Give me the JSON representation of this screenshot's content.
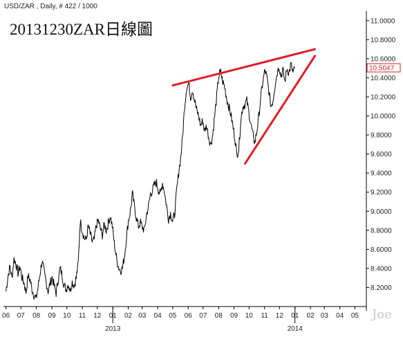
{
  "header": {
    "text": "USD/ZAR , Daily, # 422 / 1000"
  },
  "title": "20131230ZAR日線圖",
  "watermark": "Joe",
  "colors": {
    "price": "#000000",
    "trendline": "#e01c24",
    "lastval": "#d42020",
    "axis": "#000000"
  },
  "chart_data": {
    "type": "line",
    "series": [
      {
        "values": [
          8.16,
          8.32,
          8.42,
          8.3,
          8.5,
          8.45,
          8.35,
          8.42,
          8.3,
          8.25,
          8.15,
          8.32,
          8.28,
          8.18,
          8.12,
          8.08,
          8.2,
          8.35,
          8.48,
          8.36,
          8.26,
          8.16,
          8.24,
          8.31,
          8.22,
          8.14,
          8.28,
          8.4,
          8.33,
          8.22,
          8.18,
          8.24,
          8.17,
          8.26,
          8.22,
          8.3,
          8.45,
          8.9,
          8.8,
          8.72,
          8.7,
          8.84,
          8.76,
          8.68,
          8.7,
          8.85,
          8.9,
          8.82,
          8.75,
          8.86,
          8.8,
          8.88,
          8.95,
          8.84,
          8.66,
          8.52,
          8.42,
          8.38,
          8.4,
          8.52,
          8.72,
          8.9,
          9.0,
          9.18,
          9.05,
          8.93,
          8.84,
          8.88,
          8.83,
          8.8,
          8.96,
          9.05,
          9.18,
          9.22,
          9.28,
          9.3,
          9.22,
          9.18,
          9.3,
          9.2,
          9.06,
          8.92,
          8.98,
          8.9,
          8.96,
          9.2,
          9.4,
          9.55,
          9.78,
          10.1,
          10.3,
          10.34,
          10.2,
          10.28,
          10.16,
          10.06,
          10.0,
          9.9,
          9.95,
          9.84,
          9.9,
          9.78,
          9.7,
          9.8,
          10.0,
          10.2,
          10.42,
          10.46,
          10.36,
          10.3,
          10.18,
          10.1,
          10.02,
          9.9,
          9.78,
          9.6,
          9.65,
          9.95,
          10.1,
          10.12,
          10.16,
          10.04,
          9.92,
          9.8,
          9.72,
          9.84,
          10.0,
          10.2,
          10.36,
          10.48,
          10.4,
          10.26,
          10.1,
          10.16,
          10.32,
          10.44,
          10.53,
          10.42,
          10.48,
          10.36,
          10.5,
          10.45,
          10.54,
          10.45,
          10.5
        ]
      }
    ],
    "x_start_date": "2012-06-01",
    "x_end_date": "2014-01-01",
    "xticks": [
      {
        "label": "06",
        "value": "2012-06-01"
      },
      {
        "label": "07",
        "value": "2012-07-01"
      },
      {
        "label": "08",
        "value": "2012-08-01"
      },
      {
        "label": "09",
        "value": "2012-09-01"
      },
      {
        "label": "10",
        "value": "2012-10-01"
      },
      {
        "label": "11",
        "value": "2012-11-01"
      },
      {
        "label": "12",
        "value": "2012-12-01"
      },
      {
        "label": "01",
        "value": "2013-01-01"
      },
      {
        "label": "02",
        "value": "2013-02-01"
      },
      {
        "label": "03",
        "value": "2013-03-01"
      },
      {
        "label": "04",
        "value": "2013-04-01"
      },
      {
        "label": "05",
        "value": "2013-05-01"
      },
      {
        "label": "06",
        "value": "2013-06-01"
      },
      {
        "label": "07",
        "value": "2013-07-01"
      },
      {
        "label": "08",
        "value": "2013-08-01"
      },
      {
        "label": "09",
        "value": "2013-09-01"
      },
      {
        "label": "10",
        "value": "2013-10-01"
      },
      {
        "label": "11",
        "value": "2013-11-01"
      },
      {
        "label": "12",
        "value": "2013-12-01"
      },
      {
        "label": "01",
        "value": "2014-01-01"
      },
      {
        "label": "02",
        "value": "2014-02-01"
      },
      {
        "label": "03",
        "value": "2014-03-01"
      },
      {
        "label": "04",
        "value": "2014-04-01"
      },
      {
        "label": "05",
        "value": "2014-05-01"
      }
    ],
    "year_labels": [
      {
        "label": "2013",
        "value": "2013-01-01"
      },
      {
        "label": "2014",
        "value": "2014-01-01"
      }
    ],
    "yticks": [
      "8.2000",
      "8.4000",
      "8.6000",
      "8.8000",
      "9.0000",
      "9.2000",
      "9.4000",
      "9.6000",
      "9.8000",
      "10.0000",
      "10.2000",
      "10.4000",
      "10.6000",
      "10.8000",
      "11.0000"
    ],
    "ylim": [
      8.0,
      11.1
    ],
    "xlim": [
      "2012-05-27",
      "2014-05-24"
    ],
    "last_value": "10.5047",
    "trendlines": [
      {
        "name": "upper-resistance",
        "from": {
          "x": "2013-05-01",
          "y": 10.32
        },
        "to": {
          "x": "2014-02-10",
          "y": 10.7
        }
      },
      {
        "name": "lower-support",
        "from": {
          "x": "2013-09-23",
          "y": 9.5
        },
        "to": {
          "x": "2014-02-10",
          "y": 10.63
        }
      }
    ]
  }
}
